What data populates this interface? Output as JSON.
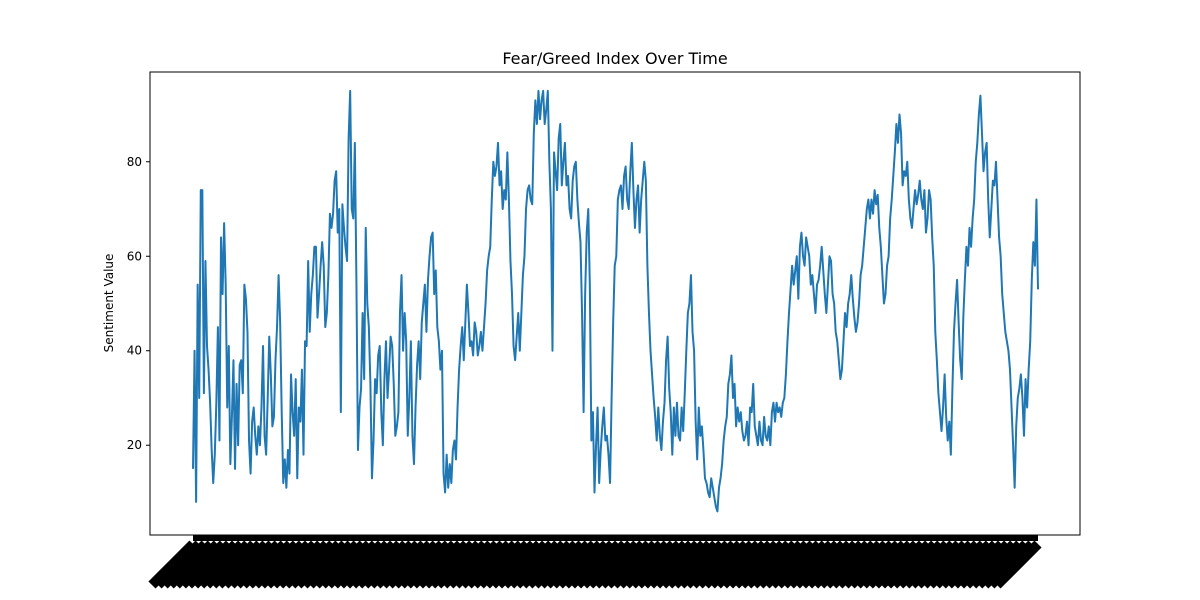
{
  "chart_data": {
    "type": "line",
    "title": "Fear/Greed Index Over Time",
    "xlabel": "",
    "ylabel": "Sentiment Value",
    "yticks": [
      20,
      40,
      60,
      80
    ],
    "ylim": [
      1,
      99
    ],
    "grid": false,
    "legend": "none",
    "line_color": "#1f77b4",
    "x_tick_labels_note_count": 0,
    "series": [
      {
        "values": [
          15,
          40,
          8,
          54,
          30,
          74,
          74,
          31,
          59,
          41,
          36,
          29,
          19,
          12,
          18,
          29,
          45,
          21,
          64,
          52,
          67,
          54,
          28,
          41,
          16,
          26,
          38,
          15,
          33,
          20,
          37,
          38,
          31,
          54,
          51,
          44,
          21,
          14,
          25,
          28,
          22,
          18,
          24,
          20,
          28,
          41,
          22,
          18,
          30,
          43,
          35,
          24,
          26,
          38,
          45,
          56,
          46,
          27,
          12,
          17,
          11,
          19,
          14,
          35,
          27,
          22,
          34,
          13,
          28,
          25,
          36,
          18,
          42,
          41,
          59,
          44,
          52,
          56,
          62,
          62,
          47,
          52,
          58,
          63,
          58,
          45,
          48,
          56,
          69,
          66,
          69,
          76,
          78,
          65,
          70,
          27,
          71,
          66,
          62,
          59,
          85,
          95,
          70,
          68,
          84,
          55,
          19,
          28,
          32,
          48,
          34,
          66,
          50,
          45,
          33,
          13,
          21,
          34,
          31,
          39,
          41,
          27,
          20,
          34,
          42,
          30,
          36,
          43,
          41,
          33,
          22,
          24,
          27,
          48,
          56,
          40,
          48,
          42,
          22,
          30,
          42,
          22,
          16,
          28,
          37,
          42,
          34,
          46,
          50,
          54,
          44,
          55,
          60,
          64,
          65,
          52,
          57,
          45,
          42,
          36,
          40,
          14,
          10,
          18,
          11,
          16,
          12,
          19,
          21,
          17,
          28,
          36,
          41,
          45,
          38,
          46,
          54,
          48,
          41,
          42,
          39,
          46,
          44,
          39,
          41,
          44,
          40,
          45,
          50,
          57,
          60,
          62,
          72,
          80,
          77,
          79,
          84,
          75,
          78,
          70,
          74,
          72,
          82,
          72,
          59,
          52,
          41,
          38,
          43,
          48,
          40,
          48,
          56,
          60,
          70,
          74,
          75,
          72,
          71,
          86,
          93,
          88,
          95,
          89,
          93,
          95,
          88,
          91,
          95,
          80,
          70,
          40,
          82,
          78,
          74,
          85,
          88,
          75,
          80,
          84,
          75,
          77,
          70,
          68,
          76,
          79,
          80,
          72,
          67,
          63,
          48,
          27,
          52,
          65,
          70,
          54,
          21,
          27,
          10,
          20,
          28,
          12,
          19,
          24,
          28,
          21,
          22,
          18,
          12,
          30,
          46,
          58,
          60,
          72,
          74,
          75,
          70,
          77,
          79,
          72,
          70,
          78,
          84,
          74,
          66,
          72,
          75,
          65,
          72,
          76,
          80,
          76,
          58,
          48,
          40,
          35,
          30,
          26,
          21,
          28,
          22,
          19,
          25,
          29,
          38,
          43,
          32,
          27,
          18,
          28,
          22,
          29,
          22,
          21,
          28,
          23,
          31,
          40,
          48,
          50,
          56,
          44,
          40,
          25,
          17,
          28,
          22,
          24,
          19,
          13,
          12,
          10,
          9,
          13,
          11,
          9,
          7,
          6,
          11,
          13,
          16,
          21,
          24,
          26,
          33,
          35,
          39,
          30,
          33,
          24,
          28,
          25,
          27,
          23,
          21,
          22,
          25,
          20,
          28,
          27,
          33,
          24,
          22,
          20,
          25,
          21,
          20,
          26,
          22,
          21,
          24,
          20,
          27,
          29,
          25,
          29,
          27,
          28,
          26,
          29,
          30,
          35,
          42,
          48,
          53,
          58,
          54,
          57,
          60,
          51,
          62,
          65,
          60,
          58,
          64,
          62,
          60,
          54,
          56,
          52,
          48,
          54,
          55,
          58,
          62,
          57,
          52,
          48,
          54,
          60,
          59,
          52,
          50,
          44,
          42,
          38,
          34,
          36,
          42,
          48,
          45,
          50,
          52,
          56,
          51,
          47,
          44,
          46,
          50,
          56,
          58,
          62,
          66,
          70,
          72,
          68,
          72,
          69,
          74,
          71,
          73,
          66,
          62,
          56,
          50,
          52,
          58,
          60,
          68,
          72,
          77,
          82,
          88,
          84,
          90,
          86,
          75,
          78,
          77,
          80,
          72,
          68,
          66,
          70,
          74,
          71,
          73,
          76,
          72,
          70,
          74,
          65,
          68,
          74,
          72,
          64,
          58,
          44,
          38,
          31,
          27,
          23,
          28,
          35,
          26,
          21,
          25,
          18,
          32,
          44,
          50,
          55,
          46,
          38,
          34,
          47,
          55,
          62,
          58,
          66,
          62,
          68,
          72,
          80,
          84,
          90,
          94,
          86,
          78,
          82,
          84,
          72,
          64,
          70,
          76,
          75,
          80,
          72,
          64,
          60,
          52,
          48,
          44,
          42,
          40,
          36,
          28,
          20,
          11,
          24,
          30,
          32,
          35,
          30,
          22,
          34,
          28,
          36,
          42,
          55,
          63,
          58,
          72,
          53
        ]
      }
    ]
  }
}
